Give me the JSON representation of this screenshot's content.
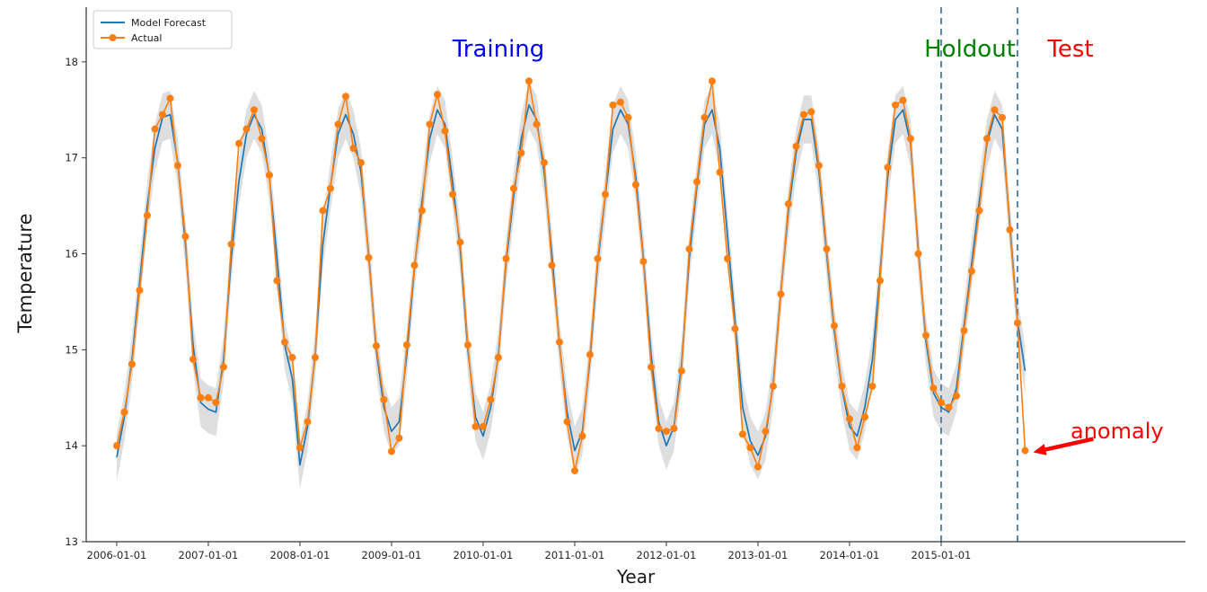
{
  "figure": {
    "background": "#ffffff"
  },
  "chart_data": {
    "type": "line",
    "title": "",
    "xlabel": "Year",
    "ylabel": "Temperature",
    "x_start": "2006-01",
    "frequency": "monthly",
    "x_tick_labels": [
      "2006-01-01",
      "2007-01-01",
      "2008-01-01",
      "2009-01-01",
      "2010-01-01",
      "2011-01-01",
      "2012-01-01",
      "2013-01-01",
      "2014-01-01",
      "2015-01-01"
    ],
    "y_ticks": [
      13,
      14,
      15,
      16,
      17,
      18
    ],
    "xlim_decimal_years": [
      2005.667,
      2017.667
    ],
    "ylim": [
      13,
      18.57
    ],
    "grid": false,
    "legend_position": "upper-left",
    "series": [
      {
        "name": "Model Forecast",
        "color": "#1f77b4",
        "style": "line",
        "values": [
          13.88,
          14.3,
          14.9,
          15.7,
          16.5,
          17.1,
          17.42,
          17.45,
          16.95,
          16.1,
          15.05,
          14.45,
          14.38,
          14.35,
          14.9,
          15.95,
          16.75,
          17.25,
          17.45,
          17.3,
          16.8,
          15.95,
          15.05,
          14.7,
          13.8,
          14.2,
          14.95,
          16.1,
          16.7,
          17.25,
          17.45,
          17.25,
          16.85,
          16.0,
          15.0,
          14.4,
          14.15,
          14.25,
          14.95,
          15.85,
          16.55,
          17.2,
          17.5,
          17.35,
          16.75,
          16.05,
          15.0,
          14.3,
          14.1,
          14.4,
          14.95,
          15.9,
          16.6,
          17.2,
          17.55,
          17.4,
          16.85,
          16.0,
          15.05,
          14.35,
          13.95,
          14.15,
          14.9,
          15.9,
          16.6,
          17.3,
          17.5,
          17.35,
          16.8,
          15.95,
          14.95,
          14.25,
          14.0,
          14.2,
          14.85,
          15.95,
          16.7,
          17.35,
          17.5,
          17.1,
          16.2,
          15.3,
          14.4,
          14.05,
          13.9,
          14.1,
          14.65,
          15.6,
          16.45,
          17.05,
          17.4,
          17.4,
          16.85,
          16.0,
          15.2,
          14.6,
          14.2,
          14.1,
          14.4,
          14.9,
          15.8,
          16.8,
          17.4,
          17.5,
          17.15,
          16.05,
          15.1,
          14.55,
          14.4,
          14.35,
          14.6,
          15.25,
          15.9,
          16.55,
          17.15,
          17.45,
          17.3,
          16.3,
          15.3,
          14.78
        ]
      },
      {
        "name": "Actual",
        "color": "#ff7f0e",
        "style": "line+markers",
        "values": [
          14.0,
          14.35,
          14.85,
          15.62,
          16.4,
          17.3,
          17.45,
          17.62,
          16.92,
          16.18,
          14.9,
          14.5,
          14.5,
          14.45,
          14.82,
          16.1,
          17.15,
          17.3,
          17.5,
          17.2,
          16.82,
          15.72,
          15.08,
          14.92,
          13.98,
          14.25,
          14.92,
          16.45,
          16.68,
          17.35,
          17.64,
          17.1,
          16.95,
          15.96,
          15.04,
          14.48,
          13.94,
          14.08,
          15.05,
          15.88,
          16.45,
          17.35,
          17.66,
          17.28,
          16.62,
          16.12,
          15.05,
          14.2,
          14.2,
          14.48,
          14.92,
          15.95,
          16.68,
          17.05,
          17.8,
          17.35,
          16.95,
          15.88,
          15.08,
          14.25,
          13.74,
          14.1,
          14.95,
          15.95,
          16.62,
          17.55,
          17.58,
          17.42,
          16.72,
          15.92,
          14.82,
          14.18,
          14.15,
          14.18,
          14.78,
          16.05,
          16.75,
          17.42,
          17.8,
          16.85,
          15.95,
          15.22,
          14.12,
          13.98,
          13.78,
          14.15,
          14.62,
          15.58,
          16.52,
          17.12,
          17.45,
          17.48,
          16.92,
          16.05,
          15.25,
          14.62,
          14.28,
          13.98,
          14.3,
          14.62,
          15.72,
          16.9,
          17.55,
          17.6,
          17.2,
          16.0,
          15.15,
          14.6,
          14.45,
          14.4,
          14.52,
          15.2,
          15.82,
          16.45,
          17.2,
          17.5,
          17.42,
          16.25,
          15.28,
          13.95
        ]
      }
    ],
    "confidence_band": {
      "around_series": "Model Forecast",
      "halfwidth": 0.25,
      "color": "#bdbdbd",
      "opacity": 0.5
    },
    "vlines": [
      {
        "name": "holdout-start",
        "x": "2015-01",
        "color": "#4a7ca8",
        "dashed": true
      },
      {
        "name": "test-start",
        "x": "2015-11",
        "color": "#4a7ca8",
        "dashed": true
      }
    ],
    "regions": [
      {
        "label": "Training",
        "color": "#0000ff"
      },
      {
        "label": "Holdout",
        "color": "#008000"
      },
      {
        "label": "Test",
        "color": "#ff0000"
      }
    ],
    "anomaly_annotation": {
      "text": "anomaly",
      "color": "#ff0000",
      "point": {
        "x": "2015-12",
        "value": 13.95
      }
    },
    "axis": {
      "spine_color": "#333333",
      "tick_label_color": "#262626",
      "tick_label_size": 11.5
    },
    "legend": {
      "entries": [
        "Model Forecast",
        "Actual"
      ],
      "border_color": "#cccccc",
      "background": "#ffffff"
    }
  }
}
